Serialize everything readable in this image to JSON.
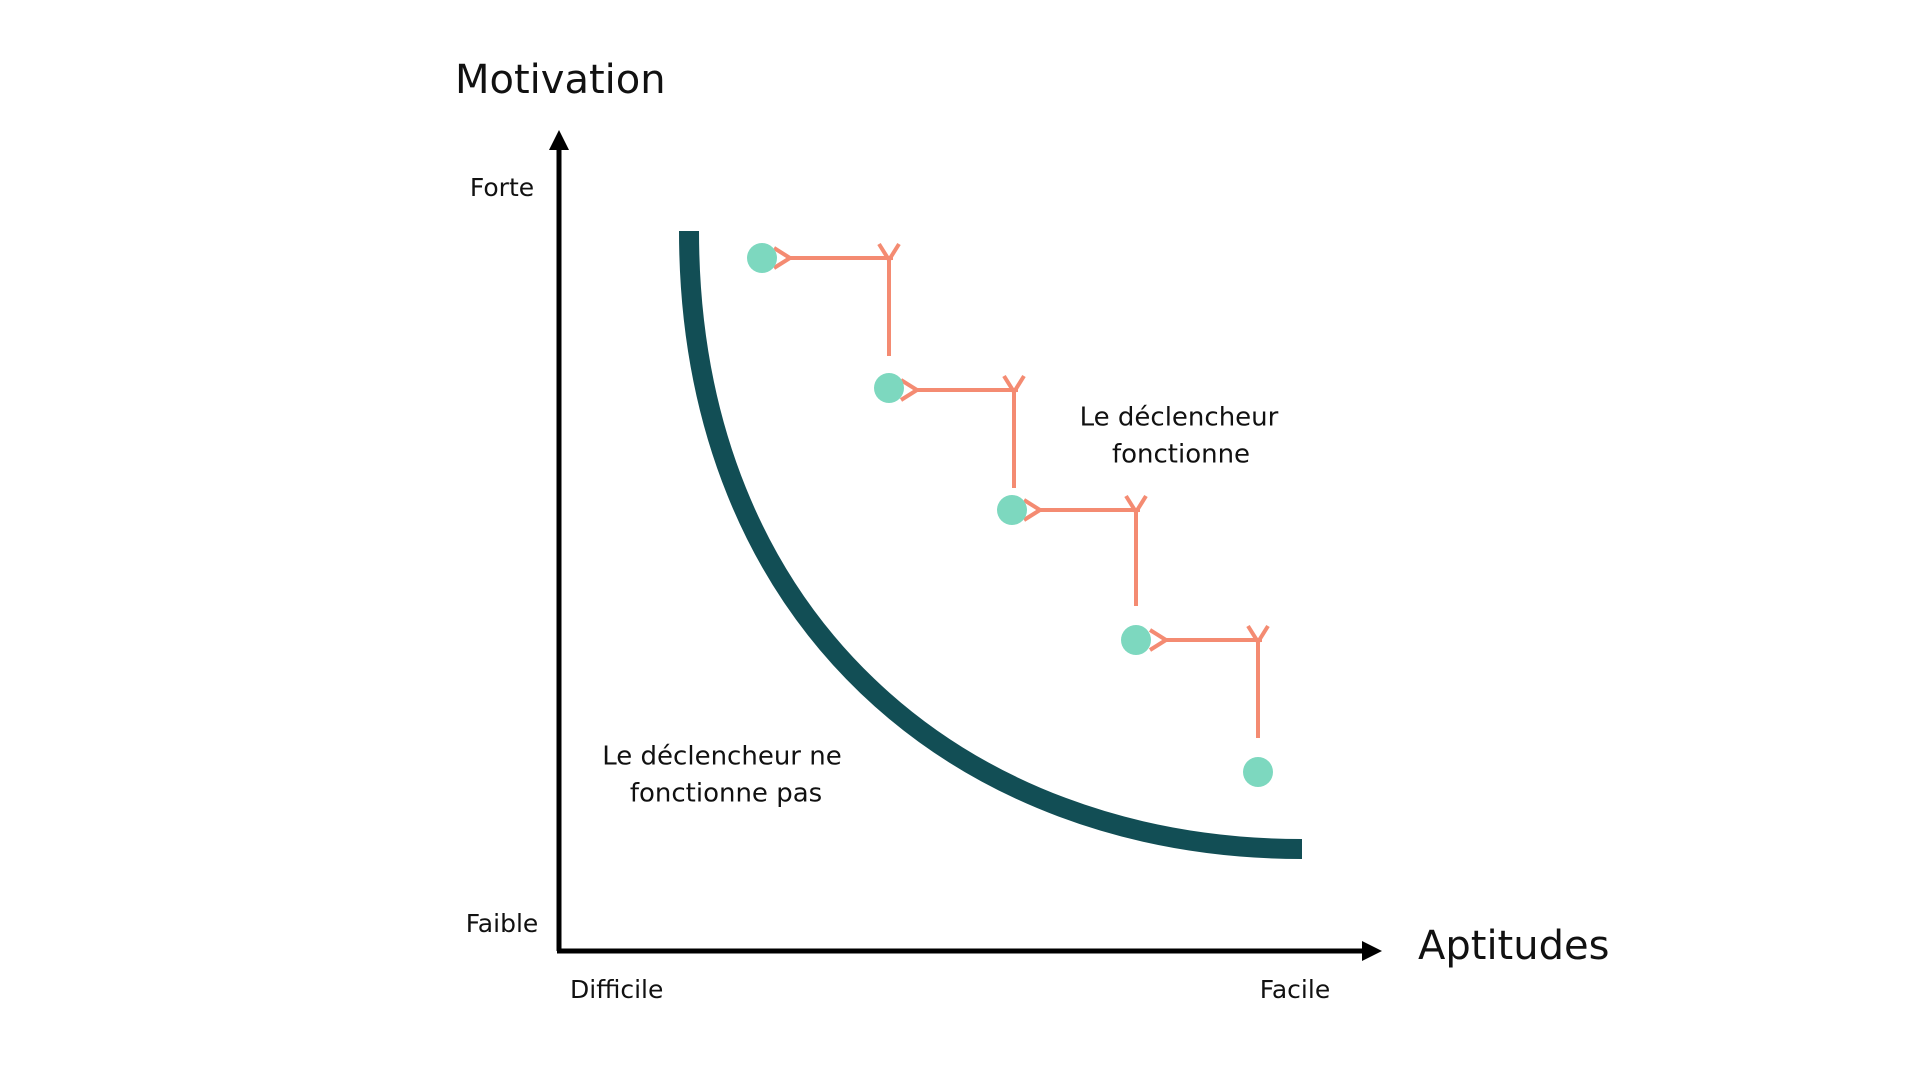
{
  "y_axis": {
    "title": "Motivation",
    "high": "Forte",
    "low": "Faible"
  },
  "x_axis": {
    "title": "Aptitudes",
    "low": "Difficile",
    "high": "Facile"
  },
  "regions": {
    "works": {
      "lines": [
        "Le déclencheur",
        "fonctionne"
      ]
    },
    "fails": {
      "lines": [
        "Le déclencheur ne",
        "fonctionne pas"
      ]
    }
  }
}
